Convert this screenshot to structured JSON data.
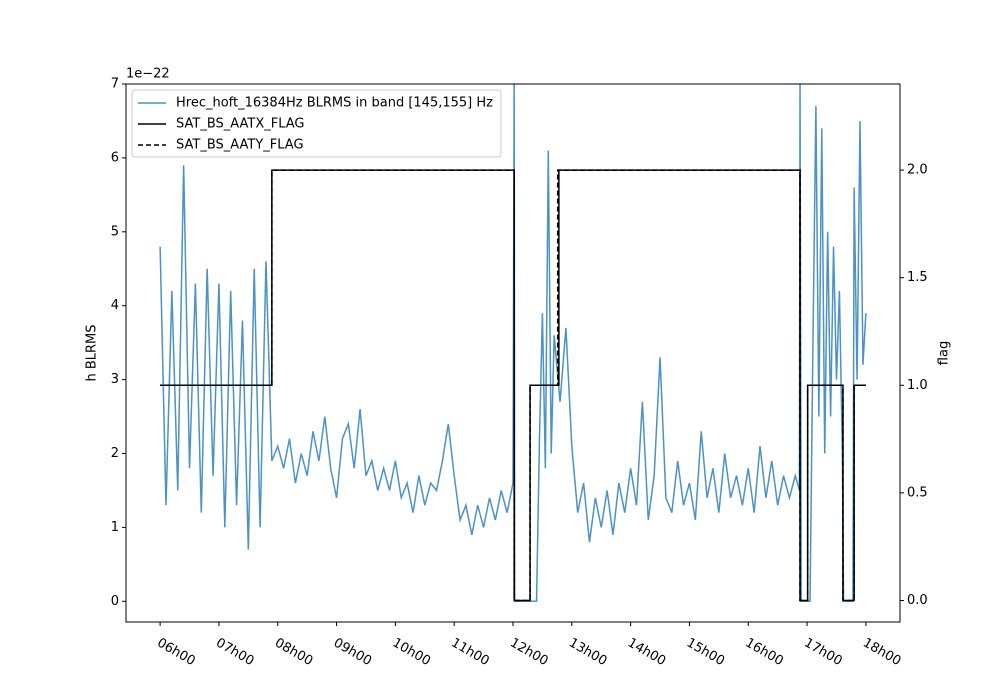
{
  "chart_data": {
    "type": "line",
    "ylabel": "h BLRMS",
    "y2label": "flag",
    "offset_text": "1e−22",
    "xlim": [
      5.42,
      18.58
    ],
    "xticks": [
      {
        "value": 6,
        "label": "06h00"
      },
      {
        "value": 7,
        "label": "07h00"
      },
      {
        "value": 8,
        "label": "08h00"
      },
      {
        "value": 9,
        "label": "09h00"
      },
      {
        "value": 10,
        "label": "10h00"
      },
      {
        "value": 11,
        "label": "11h00"
      },
      {
        "value": 12,
        "label": "12h00"
      },
      {
        "value": 13,
        "label": "13h00"
      },
      {
        "value": 14,
        "label": "14h00"
      },
      {
        "value": 15,
        "label": "15h00"
      },
      {
        "value": 16,
        "label": "16h00"
      },
      {
        "value": 17,
        "label": "17h00"
      },
      {
        "value": 18,
        "label": "18h00"
      }
    ],
    "ylim": [
      -0.28,
      7
    ],
    "yticks": [
      0,
      1,
      2,
      3,
      4,
      5,
      6,
      7
    ],
    "y2lim": [
      -0.1,
      2.4
    ],
    "y2ticks": [
      {
        "value": 0,
        "label": "0.0"
      },
      0.5,
      {
        "value": 1,
        "label": "1.0"
      },
      1.5,
      {
        "value": 2,
        "label": "2.0"
      }
    ],
    "legend": "upper left",
    "series": [
      {
        "name": "Hrec_hoft_16384Hz BLRMS in band [145,155] Hz",
        "color": "#1f77b4",
        "opacity": 0.8,
        "axis": "y",
        "x": [
          6.0,
          6.1,
          6.2,
          6.3,
          6.4,
          6.5,
          6.6,
          6.7,
          6.8,
          6.9,
          7.0,
          7.1,
          7.2,
          7.3,
          7.4,
          7.5,
          7.6,
          7.7,
          7.8,
          7.9,
          8.0,
          8.1,
          8.2,
          8.3,
          8.4,
          8.5,
          8.6,
          8.7,
          8.8,
          8.9,
          9.0,
          9.1,
          9.2,
          9.3,
          9.4,
          9.5,
          9.6,
          9.7,
          9.8,
          9.9,
          10.0,
          10.1,
          10.2,
          10.3,
          10.4,
          10.5,
          10.6,
          10.7,
          10.8,
          10.9,
          11.0,
          11.1,
          11.2,
          11.3,
          11.4,
          11.5,
          11.6,
          11.7,
          11.8,
          11.9,
          12.0,
          12.02,
          12.03,
          12.4,
          12.45,
          12.5,
          12.55,
          12.6,
          12.65,
          12.7,
          12.8,
          12.9,
          13.0,
          13.1,
          13.2,
          13.3,
          13.4,
          13.5,
          13.6,
          13.7,
          13.8,
          13.9,
          14.0,
          14.1,
          14.2,
          14.3,
          14.4,
          14.5,
          14.6,
          14.7,
          14.8,
          14.9,
          15.0,
          15.1,
          15.2,
          15.3,
          15.4,
          15.5,
          15.6,
          15.7,
          15.8,
          15.9,
          16.0,
          16.1,
          16.2,
          16.3,
          16.4,
          16.5,
          16.6,
          16.7,
          16.8,
          16.87,
          16.88,
          16.9,
          17.05,
          17.1,
          17.15,
          17.2,
          17.25,
          17.3,
          17.35,
          17.4,
          17.45,
          17.5,
          17.55,
          17.6,
          17.62,
          17.78,
          17.8,
          17.85,
          17.9,
          17.95,
          18.0
        ],
        "values": [
          4.8,
          1.3,
          4.2,
          1.5,
          5.9,
          1.8,
          4.3,
          1.2,
          4.5,
          1.7,
          4.3,
          1.0,
          4.2,
          1.3,
          3.8,
          0.7,
          4.5,
          1.0,
          4.6,
          1.9,
          2.1,
          1.8,
          2.2,
          1.6,
          2.0,
          1.7,
          2.3,
          1.9,
          2.5,
          1.8,
          1.4,
          2.2,
          2.4,
          1.8,
          2.6,
          1.7,
          1.9,
          1.5,
          1.8,
          1.5,
          1.9,
          1.4,
          1.6,
          1.2,
          1.7,
          1.3,
          1.6,
          1.5,
          1.9,
          2.4,
          1.7,
          1.1,
          1.3,
          0.9,
          1.3,
          1.0,
          1.4,
          1.1,
          1.5,
          1.2,
          1.6,
          7.2,
          0,
          0,
          2.2,
          3.9,
          1.8,
          6.1,
          2.0,
          3.6,
          2.7,
          3.7,
          2.1,
          1.2,
          1.6,
          0.8,
          1.4,
          1.0,
          1.5,
          0.9,
          1.6,
          1.2,
          1.8,
          1.3,
          2.7,
          1.1,
          1.7,
          3.3,
          1.4,
          1.2,
          1.9,
          1.3,
          1.6,
          1.1,
          2.3,
          1.4,
          1.8,
          1.2,
          2.0,
          1.4,
          1.7,
          1.3,
          1.8,
          1.2,
          2.1,
          1.4,
          1.9,
          1.3,
          1.7,
          1.4,
          1.7,
          1.5,
          7.2,
          0,
          0,
          3.5,
          6.7,
          2.5,
          6.4,
          2.0,
          5.0,
          2.5,
          4.8,
          3.0,
          4.2,
          2.0,
          0,
          0,
          5.6,
          3.0,
          6.5,
          3.2,
          3.9
        ]
      },
      {
        "name": "SAT_BS_AATX_FLAG",
        "color": "#000000",
        "dash": "solid",
        "axis": "y2",
        "x": [
          6.0,
          7.9,
          7.9,
          12.02,
          12.02,
          12.29,
          12.29,
          12.78,
          12.78,
          16.88,
          16.88,
          17.01,
          17.01,
          17.61,
          17.61,
          17.8,
          17.8,
          18.0
        ],
        "values": [
          1,
          1,
          2,
          2,
          0,
          0,
          1,
          1,
          2,
          2,
          0,
          0,
          1,
          1,
          0,
          0,
          1,
          1
        ]
      },
      {
        "name": "SAT_BS_AATY_FLAG",
        "color": "#000000",
        "dash": "dashed",
        "axis": "y2",
        "x": [
          6.0,
          7.9,
          7.9,
          12.02,
          12.02,
          12.29,
          12.29,
          12.76,
          12.76,
          16.88,
          16.88,
          17.01,
          17.01,
          17.61,
          17.61,
          17.8,
          17.8,
          18.0
        ],
        "values": [
          1,
          1,
          2,
          2,
          0,
          0,
          1,
          1,
          2,
          2,
          0,
          0,
          1,
          1,
          0,
          0,
          1,
          1
        ]
      }
    ]
  }
}
